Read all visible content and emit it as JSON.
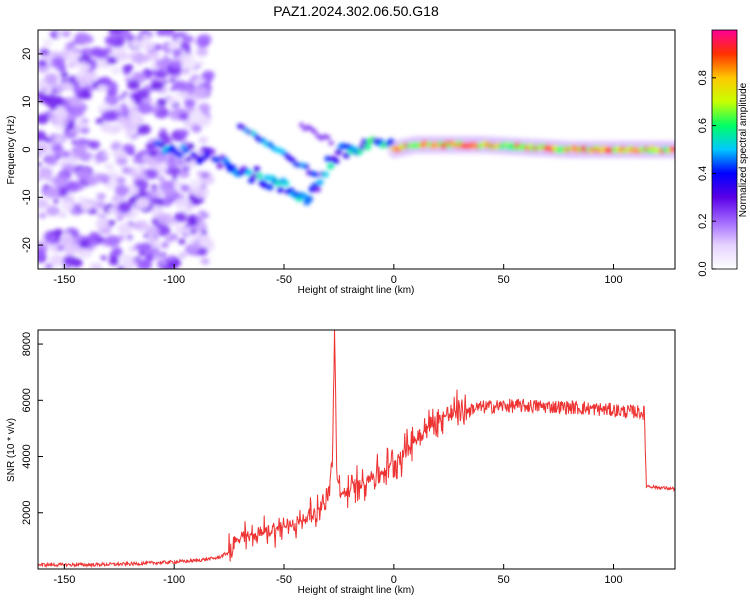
{
  "figure_title": "PAZ1.2024.302.06.50.G18",
  "chart_data": [
    {
      "type": "heatmap",
      "title": "",
      "xlabel": "Height of straight line (km)",
      "ylabel": "Frequency (Hz)",
      "xlim": [
        -162,
        128
      ],
      "ylim": [
        -25,
        25
      ],
      "xticks": [
        -150,
        -100,
        -50,
        0,
        50,
        100
      ],
      "yticks": [
        -20,
        -10,
        0,
        10,
        20
      ],
      "grid": false,
      "colorbar": {
        "label": "Normalized spectral amplitude",
        "range": [
          0,
          1
        ],
        "ticks": [
          0.0,
          0.2,
          0.4,
          0.6,
          0.8
        ],
        "colormap": [
          "#ffffff",
          "#e6d2ff",
          "#a066ff",
          "#5a00e6",
          "#0000ff",
          "#00c8ff",
          "#00ff66",
          "#c8ff00",
          "#ffc800",
          "#ff3200",
          "#ff0096"
        ]
      },
      "dominant_frequency_trace": {
        "x": [
          -108,
          -100,
          -90,
          -80,
          -70,
          -60,
          -50,
          -45,
          -40,
          -35,
          -30,
          -25,
          -20,
          -15,
          -10,
          -5,
          0,
          10,
          20,
          40,
          60,
          80,
          100,
          128
        ],
        "y": [
          1,
          0,
          -1,
          -2,
          -4,
          -6,
          -8,
          -9,
          -10,
          -8,
          -3,
          -1,
          0,
          0,
          2,
          1,
          0,
          1,
          1,
          1,
          0.5,
          0,
          0,
          0
        ]
      }
    },
    {
      "type": "line",
      "title": "",
      "xlabel": "Height of straight line (km)",
      "ylabel": "SNR (10 * v/v)",
      "xlim": [
        -162,
        128
      ],
      "ylim": [
        0,
        8500
      ],
      "xticks": [
        -150,
        -100,
        -50,
        0,
        50,
        100
      ],
      "yticks": [
        2000,
        4000,
        6000,
        8000
      ],
      "grid": false,
      "series": [
        {
          "color": "#ee3333",
          "x": [
            -162,
            -140,
            -120,
            -100,
            -90,
            -80,
            -75,
            -72,
            -70,
            -65,
            -60,
            -55,
            -50,
            -45,
            -40,
            -35,
            -30,
            -28,
            -27,
            -26,
            -25,
            -20,
            -15,
            -10,
            -5,
            0,
            5,
            10,
            15,
            20,
            25,
            30,
            35,
            40,
            50,
            60,
            70,
            80,
            90,
            100,
            105,
            110,
            114,
            115,
            116,
            120,
            128
          ],
          "y": [
            150,
            150,
            180,
            250,
            300,
            400,
            600,
            900,
            1100,
            1200,
            1300,
            1400,
            1500,
            1600,
            1800,
            2100,
            2500,
            3800,
            8400,
            3500,
            2600,
            2800,
            3100,
            3300,
            3500,
            3800,
            4200,
            4600,
            5000,
            5300,
            5500,
            5650,
            5700,
            5750,
            5800,
            5800,
            5780,
            5750,
            5700,
            5650,
            5600,
            5600,
            5550,
            2950,
            2950,
            2900,
            2850
          ]
        }
      ]
    }
  ]
}
